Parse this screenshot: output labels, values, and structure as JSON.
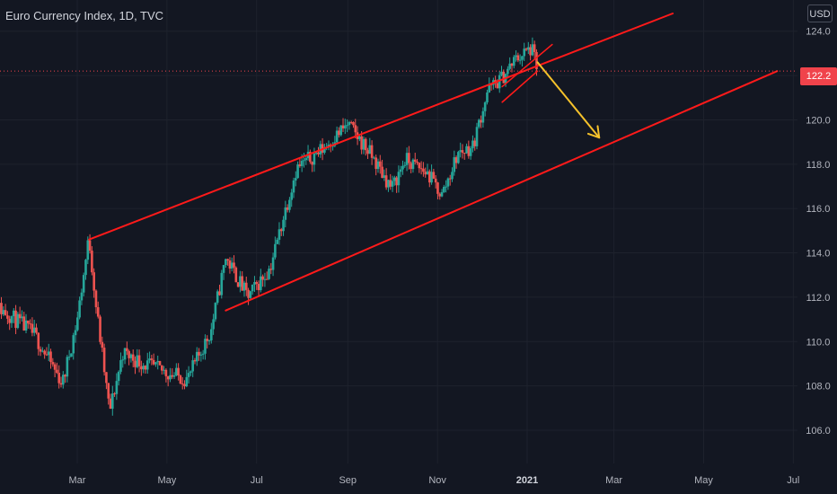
{
  "title": "Euro Currency Index, 1D, TVC",
  "currency": "USD",
  "colors": {
    "background": "#131722",
    "grid": "#1e222d",
    "up": "#26a69a",
    "down": "#ef5350",
    "trendline": "#ff1a1a",
    "projection": "#f5c22b",
    "price_tag": "#f0434b",
    "axis_text": "#b2b5be"
  },
  "chart_data": {
    "type": "candlestick",
    "instrument": "Euro Currency Index",
    "interval": "1D",
    "source": "TVC",
    "ylim": [
      104.5,
      124.8
    ],
    "y_ticks": [
      "124.0",
      "122.0",
      "120.0",
      "118.0",
      "116.0",
      "114.0",
      "112.0",
      "110.0",
      "108.0",
      "106.0"
    ],
    "x_ticks": [
      "Mar",
      "May",
      "Jul",
      "Sep",
      "Nov",
      "2021",
      "Mar",
      "May",
      "Jul"
    ],
    "last_price": "122.2",
    "grid": true,
    "price_path": [
      [
        "2020-01-01",
        111.8
      ],
      [
        "2020-01-15",
        111.2
      ],
      [
        "2020-02-01",
        110.3
      ],
      [
        "2020-02-20",
        108.1
      ],
      [
        "2020-03-01",
        111.0
      ],
      [
        "2020-03-09",
        114.7
      ],
      [
        "2020-03-14",
        111.5
      ],
      [
        "2020-03-23",
        106.8
      ],
      [
        "2020-04-01",
        109.5
      ],
      [
        "2020-04-15",
        109.0
      ],
      [
        "2020-05-01",
        108.6
      ],
      [
        "2020-05-15",
        108.3
      ],
      [
        "2020-05-31",
        110.5
      ],
      [
        "2020-06-10",
        113.8
      ],
      [
        "2020-06-25",
        112.0
      ],
      [
        "2020-07-10",
        113.3
      ],
      [
        "2020-07-28",
        117.8
      ],
      [
        "2020-08-15",
        118.7
      ],
      [
        "2020-09-01",
        119.8
      ],
      [
        "2020-09-15",
        118.6
      ],
      [
        "2020-10-01",
        116.9
      ],
      [
        "2020-10-10",
        118.2
      ],
      [
        "2020-10-25",
        117.6
      ],
      [
        "2020-11-04",
        116.6
      ],
      [
        "2020-11-15",
        118.5
      ],
      [
        "2020-11-25",
        118.8
      ],
      [
        "2020-12-05",
        121.3
      ],
      [
        "2020-12-15",
        121.9
      ],
      [
        "2020-12-25",
        122.8
      ],
      [
        "2021-01-04",
        123.2
      ],
      [
        "2021-01-08",
        122.3
      ]
    ],
    "annotations": [
      {
        "type": "trendline",
        "name": "channel-upper",
        "points": [
          [
            "2020-03-09",
            114.6
          ],
          [
            "2021-04-10",
            124.8
          ]
        ]
      },
      {
        "type": "trendline",
        "name": "channel-lower",
        "points": [
          [
            "2020-06-10",
            111.4
          ],
          [
            "2021-06-20",
            122.2
          ]
        ]
      },
      {
        "type": "trendline",
        "name": "wedge-upper",
        "points": [
          [
            "2020-12-15",
            121.5
          ],
          [
            "2021-01-18",
            123.4
          ]
        ]
      },
      {
        "type": "trendline",
        "name": "wedge-lower",
        "points": [
          [
            "2020-12-15",
            120.8
          ],
          [
            "2021-01-08",
            122.2
          ]
        ]
      },
      {
        "type": "arrow",
        "name": "projection-arrow",
        "points": [
          [
            "2021-01-08",
            122.6
          ],
          [
            "2021-02-19",
            119.2
          ]
        ]
      }
    ]
  }
}
